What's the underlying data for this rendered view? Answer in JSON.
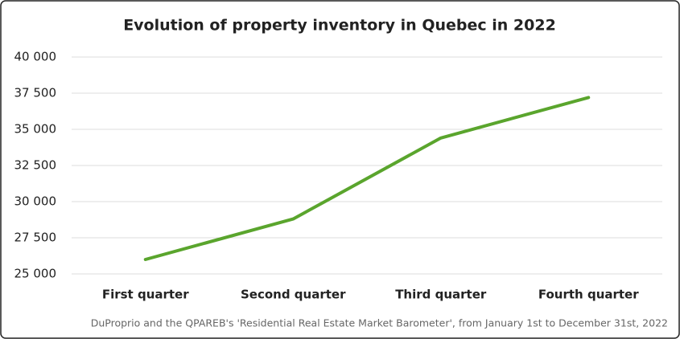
{
  "chart_data": {
    "type": "line",
    "title": "Evolution of property inventory in Quebec in 2022",
    "source": "DuProprio and the QPAREB's 'Residential Real Estate Market Barometer', from January 1st to December 31st, 2022",
    "categories": [
      "First quarter",
      "Second quarter",
      "Third quarter",
      "Fourth quarter"
    ],
    "values": [
      26000,
      28800,
      34400,
      37200
    ],
    "color": "#5aa52d",
    "ylim": [
      25000,
      40000
    ],
    "yticks": [
      {
        "value": 25000,
        "label": "25 000"
      },
      {
        "value": 27500,
        "label": "27 500"
      },
      {
        "value": 30000,
        "label": "30 000"
      },
      {
        "value": 32500,
        "label": "32 500"
      },
      {
        "value": 35000,
        "label": "35 000"
      },
      {
        "value": 37500,
        "label": "37 500"
      },
      {
        "value": 40000,
        "label": "40 000"
      }
    ],
    "grid": true
  }
}
